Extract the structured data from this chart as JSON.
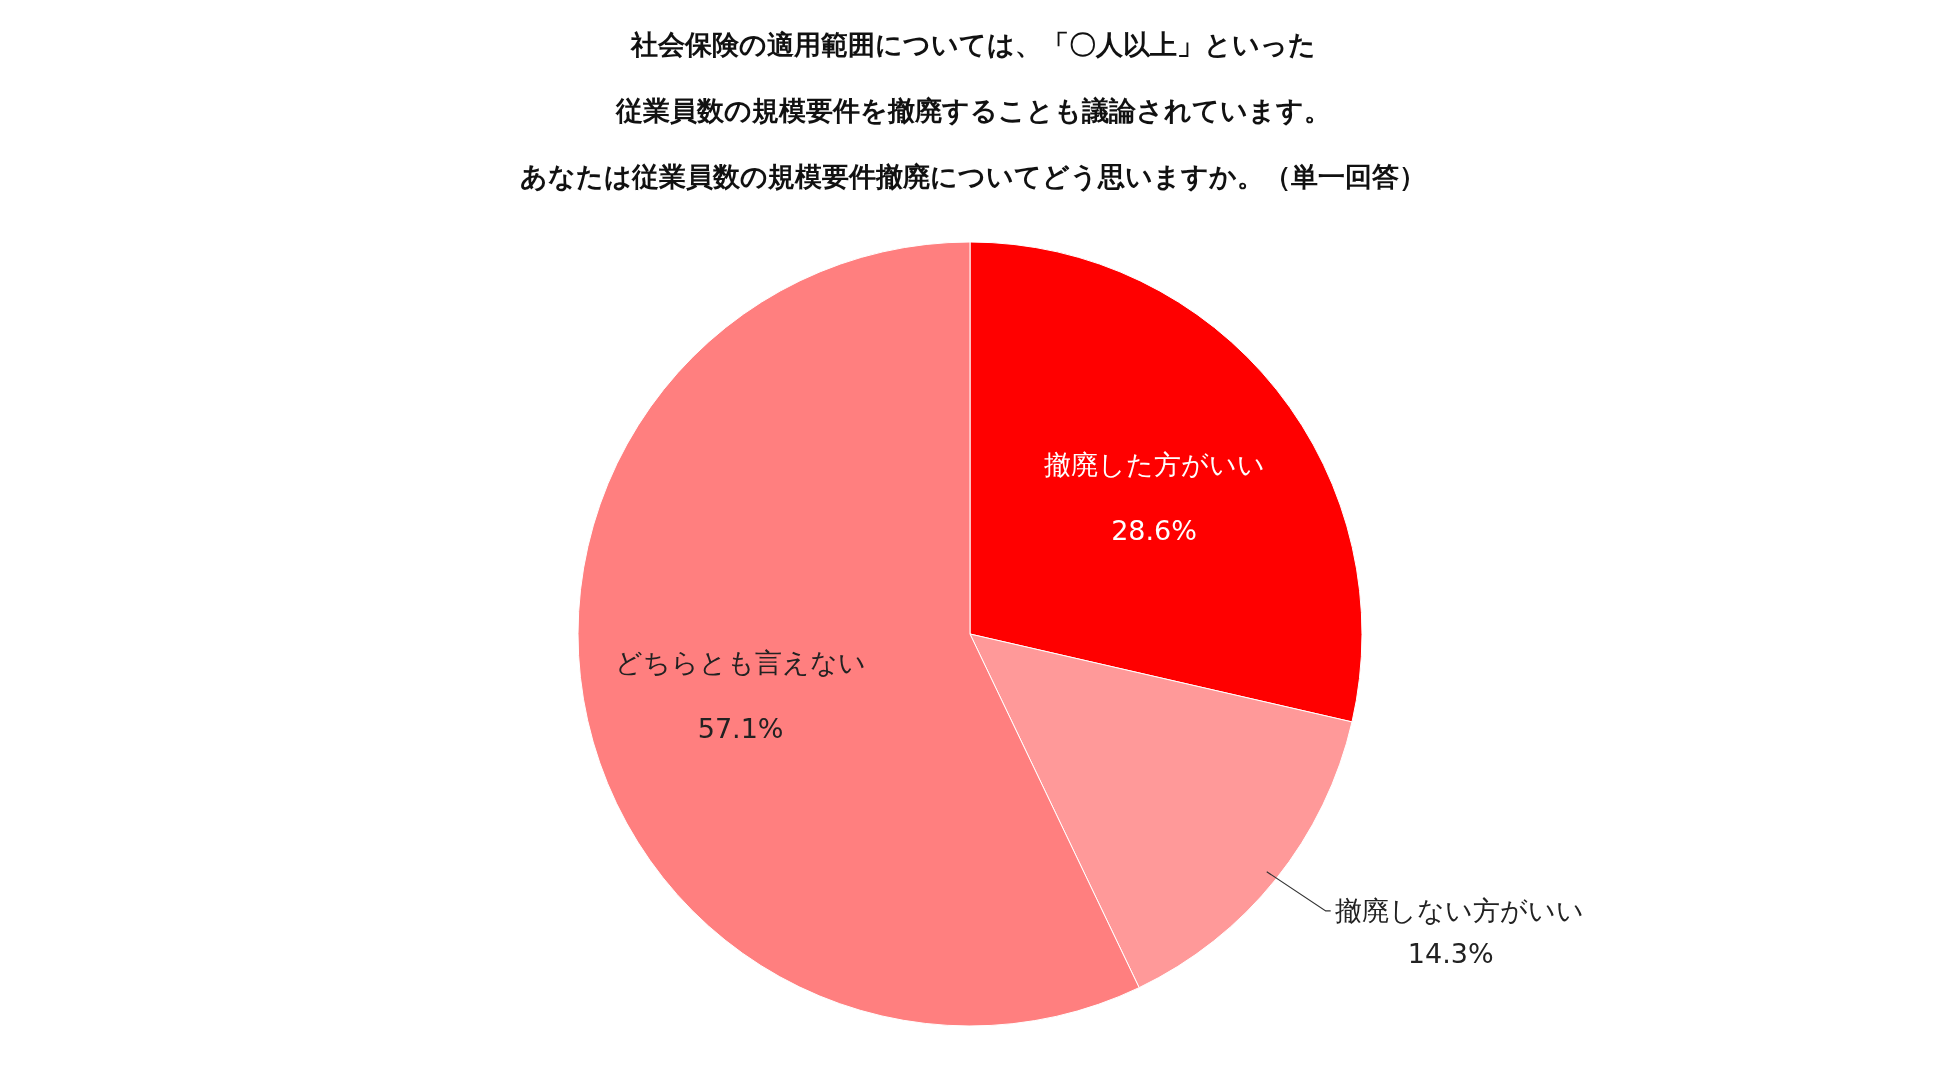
{
  "chart_data": {
    "type": "pie",
    "title": "社会保険の適用範囲については、「〇人以上」といった従業員数の規模要件を撤廃することも議論されています。",
    "subtitle": "あなたは従業員数の規模要件撤廃についてどう思いますか。（単一回答）",
    "categories": [
      "撤廃した方がいい",
      "撤廃しない方がいい",
      "どちらとも言えない"
    ],
    "values": [
      28.6,
      14.3,
      57.1
    ],
    "colors": [
      "#ff0000",
      "#ff9999",
      "#ff7f7f"
    ],
    "value_labels": [
      "28.6%",
      "14.3%",
      "57.1%"
    ]
  }
}
